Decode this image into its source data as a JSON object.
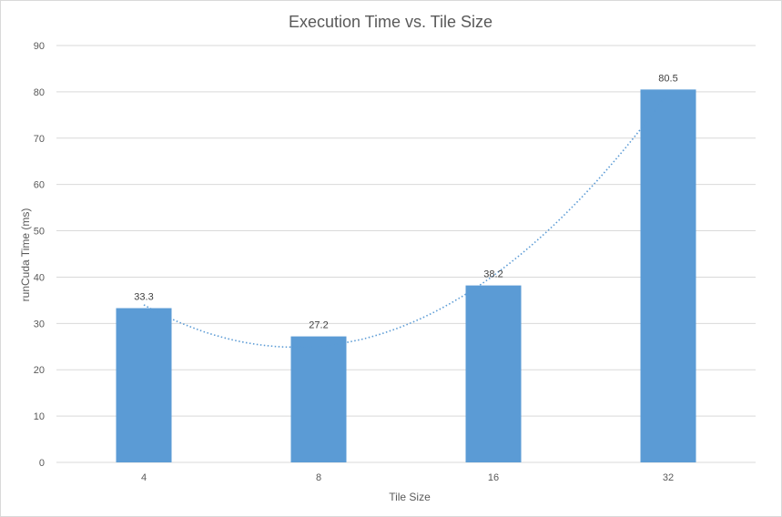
{
  "chart_data": {
    "type": "bar",
    "title": "Execution Time vs. Tile Size",
    "xlabel": "Tile Size",
    "ylabel": "runCuda Time (ms)",
    "categories": [
      "4",
      "8",
      "16",
      "32"
    ],
    "values": [
      33.3,
      27.2,
      38.2,
      80.5
    ],
    "data_labels": [
      "33.3",
      "27.2",
      "38.2",
      "80.5"
    ],
    "ylim": [
      0,
      90
    ],
    "yticks": [
      0,
      10,
      20,
      30,
      40,
      50,
      60,
      70,
      80,
      90
    ],
    "grid": true,
    "legend": "none",
    "trendline": {
      "type": "polynomial",
      "style": "dotted"
    },
    "colors": {
      "bar": "#5b9bd5",
      "trendline": "#5b9bd5",
      "grid": "#d9d9d9",
      "text": "#595959"
    }
  }
}
